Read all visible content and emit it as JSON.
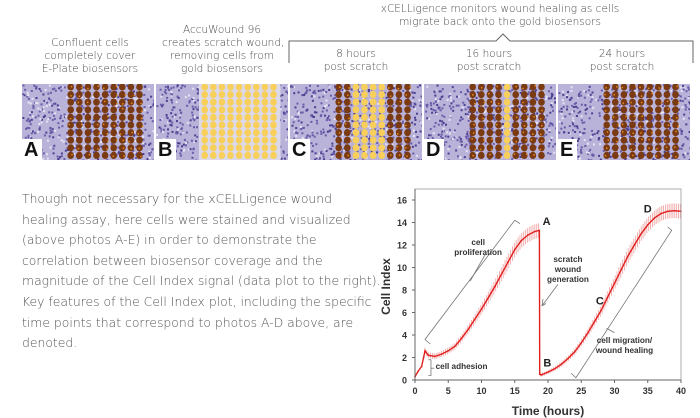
{
  "captions": {
    "a": [
      "Confluent cells",
      "completely cover",
      "E-Plate biosensors"
    ],
    "b": [
      "AccuWound 96",
      "creates scratch wound,",
      "removing cells from",
      "gold biosensors"
    ],
    "group": [
      "xCELLigence monitors wound healing as cells",
      "migrate back onto the gold biosensors"
    ],
    "c": [
      "8 hours",
      "post scratch"
    ],
    "d": [
      "16 hours",
      "post scratch"
    ],
    "e": [
      "24 hours",
      "post scratch"
    ]
  },
  "photos": [
    {
      "label": "A",
      "state": "confluent",
      "wound_fill": 0.0
    },
    {
      "label": "B",
      "state": "scratched",
      "wound_fill": 1.0
    },
    {
      "label": "C",
      "state": "8h",
      "wound_fill": 0.55
    },
    {
      "label": "D",
      "state": "16h",
      "wound_fill": 0.2
    },
    {
      "label": "E",
      "state": "24h",
      "wound_fill": 0.0
    }
  ],
  "colors": {
    "cells": "#6a5ca8",
    "gold": "#f7cf5a",
    "stained": "#7a3a12",
    "curve": "#e02020",
    "error": "#f2a8a8"
  },
  "paragraph": [
    "Though not necessary for the xCELLigence wound",
    "healing assay, here cells were stained and visualized",
    "(above photos A-E) in order to demonstrate the",
    "correlation between biosensor coverage and the",
    "magnitude of the Cell Index signal (data plot to the right).",
    "Key features of the Cell Index plot, including the specific",
    "time points that correspond to photos A-D above, are",
    "denoted."
  ],
  "chart_data": {
    "type": "line",
    "title": "",
    "xlabel": "Time (hours)",
    "ylabel": "Cell Index",
    "xlim": [
      0,
      40
    ],
    "ylim": [
      0,
      16
    ],
    "xticks": [
      0,
      5,
      10,
      15,
      20,
      25,
      30,
      35,
      40
    ],
    "yticks": [
      0,
      2,
      4,
      6,
      8,
      10,
      12,
      14,
      16
    ],
    "grid": false,
    "series": [
      {
        "name": "Cell Index",
        "x": [
          0,
          0.5,
          1,
          1.3,
          1.5,
          2,
          3,
          4,
          5,
          6,
          7,
          8,
          9,
          10,
          11,
          12,
          13,
          14,
          15,
          16,
          17,
          18,
          18.7,
          18.75,
          19,
          20,
          21,
          22,
          23,
          24,
          25,
          26,
          27,
          28,
          29,
          30,
          31,
          32,
          33,
          34,
          35,
          36,
          37,
          38,
          39,
          40
        ],
        "y": [
          0.3,
          0.8,
          1.2,
          2.0,
          2.6,
          2.2,
          2.1,
          2.3,
          2.6,
          3.0,
          3.7,
          4.5,
          5.4,
          6.3,
          7.3,
          8.3,
          9.4,
          10.5,
          11.6,
          12.4,
          12.9,
          13.2,
          13.3,
          0.5,
          0.45,
          0.7,
          1.0,
          1.4,
          1.9,
          2.5,
          3.3,
          4.2,
          5.2,
          6.2,
          7.4,
          8.6,
          9.8,
          11.0,
          12.0,
          13.0,
          13.8,
          14.4,
          14.8,
          15.0,
          15.05,
          15.0
        ],
        "error": 0.5
      }
    ],
    "annotations": [
      {
        "text": "A",
        "x": 19.2,
        "y": 13.8
      },
      {
        "text": "B",
        "x": 19.3,
        "y": 1.2
      },
      {
        "text": "C",
        "x": 27.8,
        "y": 6.7
      },
      {
        "text": "D",
        "x": 35.0,
        "y": 14.9
      },
      {
        "text": "cell proliferation",
        "x": 9.5,
        "y": 12.0
      },
      {
        "text": "scratch wound generation",
        "x": 23.0,
        "y": 10.5
      },
      {
        "text": "cell adhesion",
        "x": 6.0,
        "y": 1.0
      },
      {
        "text": "cell migration/ wound healing",
        "x": 31.5,
        "y": 3.3
      }
    ]
  }
}
